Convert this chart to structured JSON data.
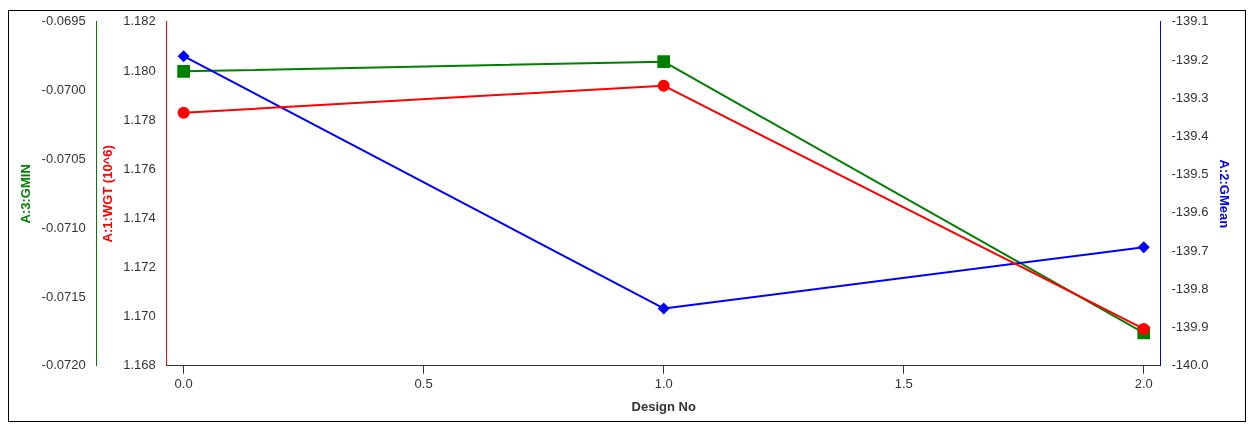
{
  "chart_data": {
    "type": "line",
    "xlabel": "Design No",
    "ylabel": "A:1:WGT (10^6)",
    "y2label": "A:2:GMean",
    "y3label": "A:3:GMIN",
    "x": [
      0,
      1,
      2
    ],
    "xlim": [
      -0.035,
      2.035
    ],
    "xticks": [
      {
        "value": 0,
        "label": "0.0"
      },
      {
        "value": 0.5,
        "label": "0.5"
      },
      {
        "value": 1,
        "label": "1.0"
      },
      {
        "value": 1.5,
        "label": "1.5"
      },
      {
        "value": 2,
        "label": "2.0"
      }
    ],
    "ylim": [
      1.168,
      1.182
    ],
    "yticks": [
      {
        "value": 1.168,
        "label": "1.168"
      },
      {
        "value": 1.17,
        "label": "1.170"
      },
      {
        "value": 1.172,
        "label": "1.172"
      },
      {
        "value": 1.174,
        "label": "1.174"
      },
      {
        "value": 1.176,
        "label": "1.176"
      },
      {
        "value": 1.178,
        "label": "1.178"
      },
      {
        "value": 1.18,
        "label": "1.180"
      },
      {
        "value": 1.182,
        "label": "1.182"
      }
    ],
    "y2lim": [
      -140.0,
      -139.1
    ],
    "y2ticks": [
      {
        "value": -140,
        "label": "-140.0"
      },
      -139.9,
      -139.8,
      -139.7,
      -139.6,
      -139.5,
      -139.4,
      -139.3,
      -139.2,
      -139.1
    ],
    "y3lim": [
      -0.072,
      -0.0695
    ],
    "y3ticks": [
      {
        "value": -0.072,
        "label": "-0.0720"
      },
      -0.0715,
      {
        "value": -0.071,
        "label": "-0.0710"
      },
      -0.0705,
      {
        "value": -0.07,
        "label": "-0.0700"
      },
      -0.0695
    ],
    "grid": false,
    "legend": false,
    "series": [
      {
        "color": "#ff0000",
        "marker": "circle",
        "values": [
          1.1783,
          1.1794,
          1.1695
        ]
      },
      {
        "color": "#0000ff",
        "marker": "diamond",
        "axis": "y2",
        "values": [
          -139.19,
          -139.85,
          -139.69
        ]
      },
      {
        "color": "#008000",
        "marker": "square",
        "axis": "y3",
        "values": [
          -0.06986,
          -0.06979,
          -0.07176
        ]
      }
    ]
  }
}
